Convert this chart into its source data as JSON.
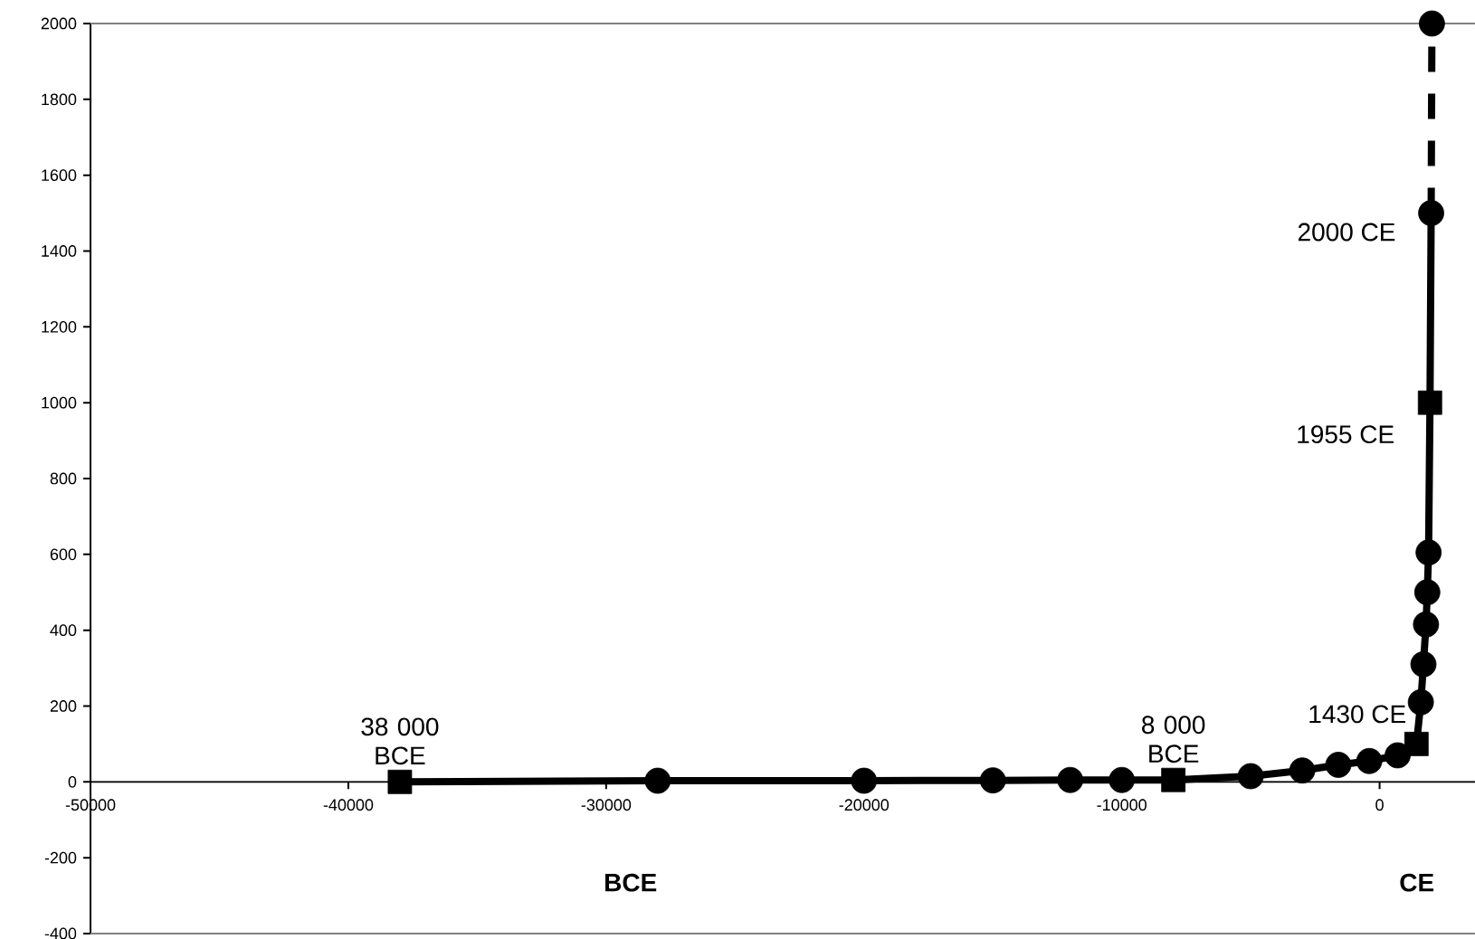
{
  "chart_data": {
    "type": "line",
    "xlim": [
      -50000,
      3700
    ],
    "ylim": [
      -400,
      2000
    ],
    "xticks": [
      -50000,
      -40000,
      -30000,
      -20000,
      -10000,
      0
    ],
    "yticks": [
      -400,
      -200,
      0,
      200,
      400,
      600,
      800,
      1000,
      1200,
      1400,
      1600,
      1800,
      2000
    ],
    "grid": false,
    "series": [
      {
        "color": "#000000",
        "line_style": "solid",
        "marker": "none",
        "x": [
          -38000,
          -28000,
          -20000,
          -15000,
          -12000,
          -10000,
          -8000,
          -5000,
          -3000,
          -1600,
          -400,
          700,
          1430,
          1600,
          1700,
          1800,
          1850,
          1900,
          1955,
          2000
        ],
        "values": [
          0,
          3,
          3,
          4,
          5,
          5,
          5,
          15,
          30,
          45,
          55,
          70,
          100,
          210,
          310,
          415,
          500,
          605,
          1000,
          1500
        ]
      },
      {
        "color": "#000000",
        "line_style": "dashed",
        "marker": "none",
        "x": [
          2000,
          2030
        ],
        "values": [
          1500,
          2000
        ]
      },
      {
        "type": "scatter",
        "color": "#000000",
        "marker": "circle",
        "x": [
          -28000,
          -20000,
          -15000,
          -12000,
          -10000,
          -5000,
          -3000,
          -1600,
          -400,
          700,
          1600,
          1700,
          1800,
          1850,
          1900,
          2000,
          2030
        ],
        "values": [
          3,
          3,
          4,
          5,
          5,
          15,
          30,
          45,
          55,
          70,
          210,
          310,
          415,
          500,
          605,
          1500,
          2000
        ]
      },
      {
        "type": "scatter",
        "color": "#000000",
        "marker": "square",
        "x": [
          -38000,
          -8000,
          1430,
          1955
        ],
        "values": [
          0,
          5,
          100,
          1000
        ]
      }
    ],
    "annotations": [
      {
        "text": "38 000 BCE",
        "x": -38000,
        "y": 0
      },
      {
        "text": "8 000 BCE",
        "x": -8000,
        "y": 5
      },
      {
        "text": "1430 CE",
        "x": 1430,
        "y": 100
      },
      {
        "text": "1955 CE",
        "x": 1955,
        "y": 1000
      },
      {
        "text": "2000 CE",
        "x": 2000,
        "y": 1500
      },
      "BCE",
      "CE"
    ]
  }
}
